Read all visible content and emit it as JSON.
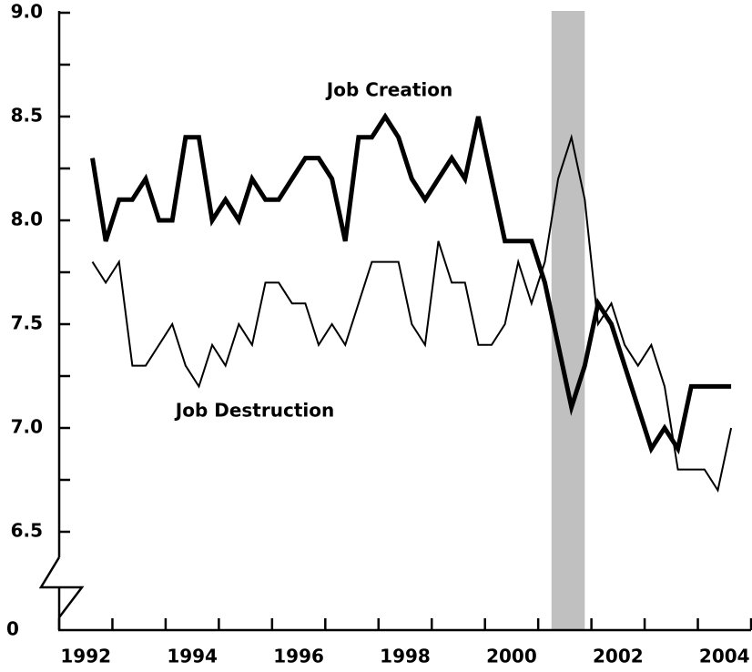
{
  "chart_data": {
    "type": "line",
    "x": [
      1992.625,
      1992.875,
      1993.125,
      1993.375,
      1993.625,
      1993.875,
      1994.125,
      1994.375,
      1994.625,
      1994.875,
      1995.125,
      1995.375,
      1995.625,
      1995.875,
      1996.125,
      1996.375,
      1996.625,
      1996.875,
      1997.125,
      1997.375,
      1997.625,
      1997.875,
      1998.125,
      1998.375,
      1998.625,
      1998.875,
      1999.125,
      1999.375,
      1999.625,
      1999.875,
      2000.125,
      2000.375,
      2000.625,
      2000.875,
      2001.125,
      2001.375,
      2001.625,
      2001.875,
      2002.125,
      2002.375,
      2002.625,
      2002.875,
      2003.125,
      2003.375,
      2003.625,
      2003.875,
      2004.125,
      2004.375,
      2004.625
    ],
    "series": [
      {
        "name": "Job Creation",
        "color": "#000000",
        "values": [
          8.3,
          7.9,
          8.1,
          8.1,
          8.2,
          8.0,
          8.0,
          8.4,
          8.4,
          8.0,
          8.1,
          8.0,
          8.2,
          8.1,
          8.1,
          8.2,
          8.3,
          8.3,
          8.2,
          7.9,
          8.4,
          8.4,
          8.5,
          8.4,
          8.2,
          8.1,
          8.2,
          8.3,
          8.2,
          8.5,
          8.2,
          7.9,
          7.9,
          7.9,
          7.7,
          7.4,
          7.1,
          7.3,
          7.6,
          7.5,
          7.3,
          7.1,
          6.9,
          7.0,
          6.9,
          7.2,
          7.2,
          7.2,
          7.2
        ]
      },
      {
        "name": "Job Destruction",
        "color": "#000000",
        "values": [
          7.8,
          7.7,
          7.8,
          7.3,
          7.3,
          7.4,
          7.5,
          7.3,
          7.2,
          7.4,
          7.3,
          7.5,
          7.4,
          7.7,
          7.7,
          7.6,
          7.6,
          7.4,
          7.5,
          7.4,
          7.6,
          7.8,
          7.8,
          7.8,
          7.5,
          7.4,
          7.9,
          7.7,
          7.7,
          7.4,
          7.4,
          7.5,
          7.8,
          7.6,
          7.8,
          8.2,
          8.4,
          8.1,
          7.5,
          7.6,
          7.4,
          7.3,
          7.4,
          7.2,
          6.8,
          6.8,
          6.8,
          6.7,
          7.0
        ]
      }
    ],
    "xlim": [
      1992,
      2005
    ],
    "xticks": [
      1992,
      1993,
      1994,
      1995,
      1996,
      1997,
      1998,
      1999,
      2000,
      2001,
      2002,
      2003,
      2004,
      2005
    ],
    "xlabels": [
      1992,
      1994,
      1996,
      1998,
      2000,
      2002,
      2004
    ],
    "ylim": [
      6.5,
      9
    ],
    "yticks": [
      {
        "value": 6.5,
        "label": "6.5"
      },
      {
        "value": 7,
        "label": "7.0"
      },
      {
        "value": 7.5,
        "label": "7.5"
      },
      {
        "value": 8,
        "label": "8.0"
      },
      {
        "value": 8.5,
        "label": "8.5"
      },
      {
        "value": 9,
        "label": "9.0"
      }
    ],
    "yminor": [
      6.75,
      7.25,
      7.75,
      8.25,
      8.75
    ],
    "ybreak_label": 0,
    "recession": [
      2001.25,
      2001.875
    ],
    "recession_color": "#c0c0c0"
  }
}
